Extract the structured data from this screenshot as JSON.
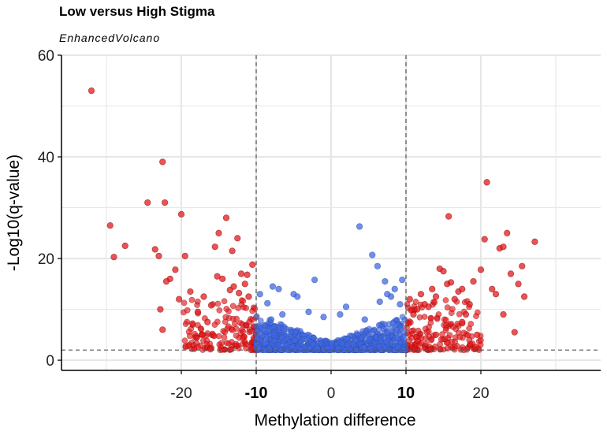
{
  "chart_data": {
    "type": "scatter",
    "title": "Low versus High Stigma",
    "subtitle": "EnhancedVolcano",
    "xlabel": "Methylation difference",
    "ylabel": "-Log10(q-value)",
    "xlim": [
      -36,
      36
    ],
    "ylim": [
      -2,
      60
    ],
    "x_ticks": [
      -20,
      -10,
      0,
      10,
      20
    ],
    "x_tick_labels": [
      "-20",
      "-10",
      "0",
      "10",
      "20"
    ],
    "bold_x_ticks": [
      "-10",
      "10"
    ],
    "y_ticks": [
      0,
      20,
      40,
      60
    ],
    "y_tick_labels": [
      "0",
      "20",
      "40",
      "60"
    ],
    "x_cutoffs": [
      -10,
      10
    ],
    "y_cutoff": 2,
    "colors": {
      "significant": "#e3191c",
      "not_significant": "#4169e1",
      "cutoff_line": "#555555",
      "grid": "#e6e6e6"
    },
    "series": [
      {
        "name": "significant",
        "points": [
          [
            -32,
            53
          ],
          [
            -29.5,
            26.5
          ],
          [
            -29,
            20.3
          ],
          [
            -27.5,
            22.5
          ],
          [
            -24.5,
            31
          ],
          [
            -23.5,
            21.8
          ],
          [
            -23,
            20.5
          ],
          [
            -22.5,
            39
          ],
          [
            -22.2,
            31
          ],
          [
            -21.5,
            16
          ],
          [
            -20.8,
            17.8
          ],
          [
            -20.3,
            12
          ],
          [
            -20,
            28.7
          ],
          [
            -19.5,
            20.5
          ],
          [
            -18.8,
            13.5
          ],
          [
            -17.8,
            9.5
          ],
          [
            -17,
            12.5
          ],
          [
            -16.5,
            7.5
          ],
          [
            -16,
            10.8
          ],
          [
            -15.5,
            22.3
          ],
          [
            -15,
            25
          ],
          [
            -14.5,
            16
          ],
          [
            -14,
            28
          ],
          [
            -13.5,
            13.8
          ],
          [
            -13,
            14.5
          ],
          [
            -12.5,
            24
          ],
          [
            -12,
            17
          ],
          [
            -11.5,
            15
          ],
          [
            -11,
            12.5
          ],
          [
            -10.5,
            18.8
          ],
          [
            -22.8,
            10
          ],
          [
            -22.5,
            6
          ],
          [
            -22,
            15.5
          ],
          [
            -18.5,
            7.2
          ],
          [
            -17.2,
            5
          ],
          [
            -15.2,
            16.5
          ],
          [
            -13.2,
            21.5
          ],
          [
            -12.3,
            13.2
          ],
          [
            -11.2,
            16.8
          ],
          [
            10.5,
            12
          ],
          [
            11,
            9
          ],
          [
            11.5,
            10
          ],
          [
            12,
            13
          ],
          [
            12.5,
            11
          ],
          [
            13,
            10.5
          ],
          [
            13.5,
            14
          ],
          [
            14,
            12.5
          ],
          [
            14.5,
            18
          ],
          [
            15,
            17.5
          ],
          [
            15.5,
            15
          ],
          [
            15.7,
            28.3
          ],
          [
            16,
            15.3
          ],
          [
            16.5,
            12
          ],
          [
            17,
            13.5
          ],
          [
            17.5,
            14
          ],
          [
            18,
            9
          ],
          [
            18.5,
            11
          ],
          [
            19,
            15.5
          ],
          [
            19.3,
            2.6
          ],
          [
            19.5,
            5
          ],
          [
            20,
            17.8
          ],
          [
            20.5,
            23.8
          ],
          [
            20.8,
            35
          ],
          [
            21.5,
            14
          ],
          [
            22,
            13
          ],
          [
            22.5,
            22
          ],
          [
            23,
            22.3
          ],
          [
            23.5,
            25
          ],
          [
            24,
            17
          ],
          [
            25,
            15
          ],
          [
            25.5,
            18.5
          ],
          [
            25.8,
            12.5
          ],
          [
            27.2,
            23.3
          ],
          [
            24.5,
            5.5
          ],
          [
            23,
            9
          ],
          [
            17.5,
            7.5
          ],
          [
            14,
            5
          ]
        ]
      },
      {
        "name": "not_significant",
        "points": [
          [
            -9.5,
            13
          ],
          [
            -8.5,
            11.2
          ],
          [
            -7.8,
            14.5
          ],
          [
            -7,
            14
          ],
          [
            -6.5,
            9
          ],
          [
            -5,
            13
          ],
          [
            -4.5,
            12.5
          ],
          [
            -2.2,
            15.8
          ],
          [
            3.8,
            26.3
          ],
          [
            5.5,
            20.7
          ],
          [
            6.2,
            18.5
          ],
          [
            7.2,
            15.5
          ],
          [
            8.5,
            14
          ],
          [
            9.5,
            15.8
          ],
          [
            9.2,
            11
          ],
          [
            8,
            12.5
          ],
          [
            7.5,
            13
          ],
          [
            6.5,
            11.5
          ],
          [
            4.5,
            8
          ],
          [
            2,
            10.5
          ],
          [
            -1,
            8.5
          ],
          [
            -3,
            9.5
          ],
          [
            -8,
            8
          ],
          [
            1.2,
            9
          ]
        ]
      }
    ]
  }
}
